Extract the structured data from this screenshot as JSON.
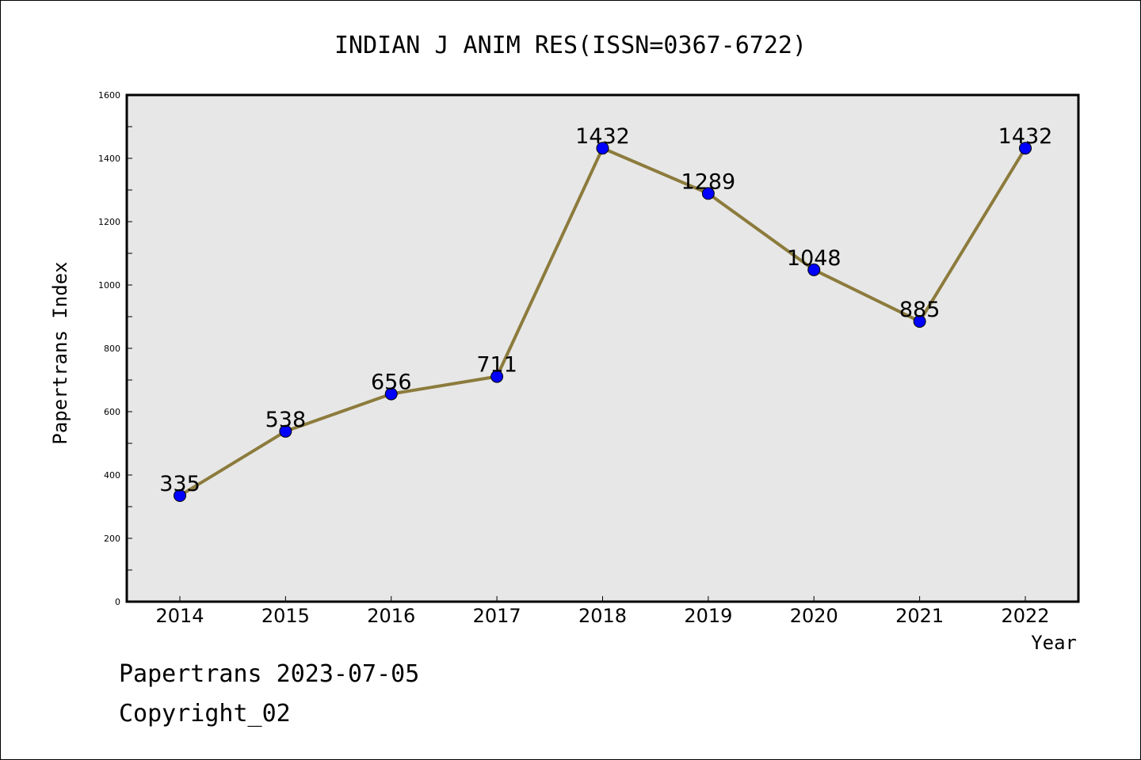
{
  "chart_data": {
    "type": "line",
    "title": "INDIAN J ANIM RES(ISSN=0367-6722)",
    "xlabel": "Year",
    "ylabel": "Papertrans Index",
    "categories": [
      "2014",
      "2015",
      "2016",
      "2017",
      "2018",
      "2019",
      "2020",
      "2021",
      "2022"
    ],
    "values": [
      335,
      538,
      656,
      711,
      1432,
      1289,
      1048,
      885,
      1432
    ],
    "data_labels": [
      "335",
      "538",
      "656",
      "711",
      "1432",
      "1289",
      "1048",
      "885",
      "1432"
    ],
    "ylim": [
      0,
      1600
    ],
    "yticks": [
      "0",
      "200",
      "400",
      "600",
      "800",
      "1000",
      "1200",
      "1400",
      "1600"
    ],
    "grid": false,
    "colors": {
      "line": "#8c7b3c",
      "marker": "#0000ff",
      "plot_background": "#e7e7e7"
    }
  },
  "footer": {
    "line1": "Papertrans 2023-07-05",
    "line2": "Copyright_02"
  }
}
